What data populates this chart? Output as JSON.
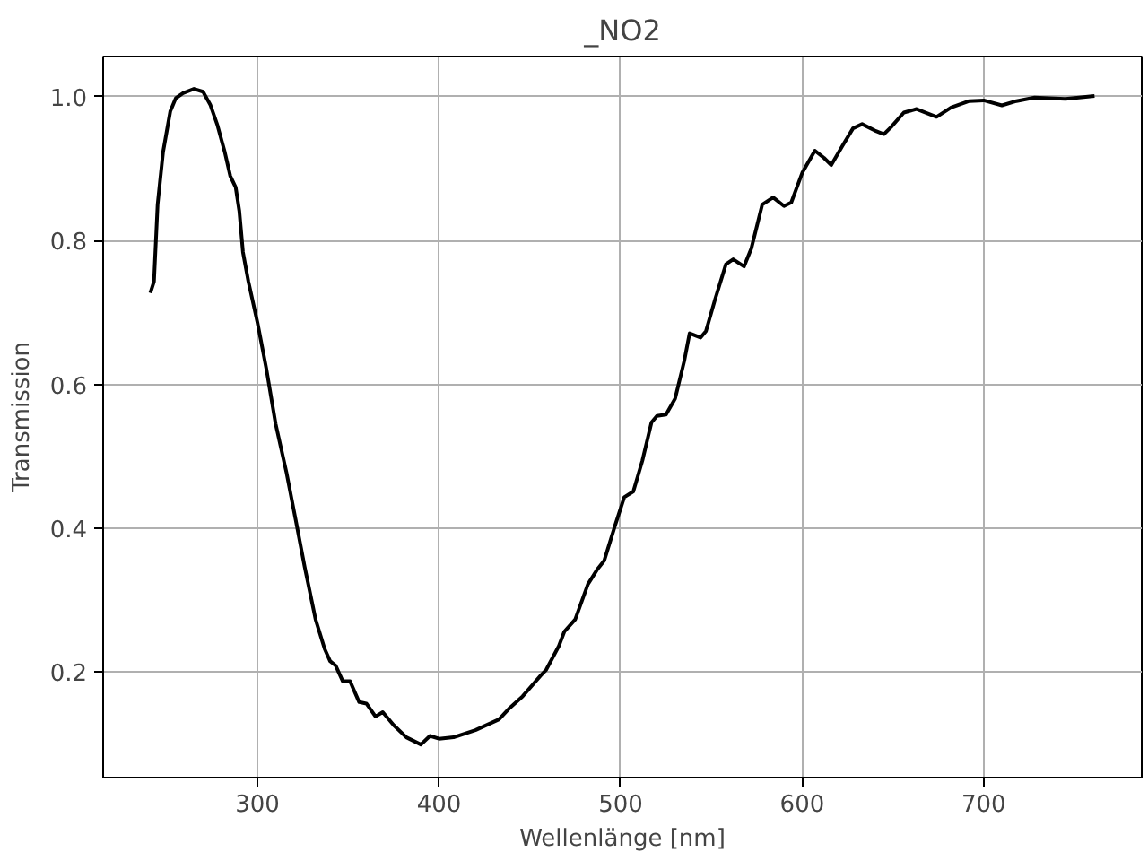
{
  "chart_data": {
    "type": "line",
    "title": "_NO2",
    "xlabel": "Wellenlänge [nm]",
    "ylabel": "Transmission",
    "x": [
      241,
      243,
      245,
      248,
      252,
      255,
      259,
      265,
      270,
      274,
      278,
      282,
      285,
      288,
      290,
      292,
      295,
      300,
      305,
      310,
      316,
      321,
      326,
      332,
      337,
      340,
      343,
      347,
      351,
      356,
      360,
      365,
      369,
      375,
      382,
      390,
      395,
      400,
      408,
      420,
      433,
      439,
      446,
      456,
      459,
      466,
      469,
      475,
      482,
      487,
      491,
      497,
      502,
      507,
      512,
      517,
      520,
      525,
      530,
      535,
      538,
      544,
      547,
      552,
      558,
      562,
      568,
      572,
      578,
      584,
      590,
      594,
      600,
      607,
      612,
      616,
      622,
      628,
      633,
      640,
      645,
      649,
      656,
      663,
      668,
      674,
      682,
      692,
      700,
      710,
      718,
      728,
      745,
      761
    ],
    "series": [
      {
        "color": "#000000",
        "values": [
          0.727,
          0.743,
          0.85,
          0.923,
          0.98,
          0.998,
          1.005,
          1.011,
          1.007,
          0.989,
          0.96,
          0.923,
          0.89,
          0.874,
          0.841,
          0.784,
          0.743,
          0.686,
          0.62,
          0.545,
          0.477,
          0.412,
          0.346,
          0.273,
          0.232,
          0.215,
          0.209,
          0.187,
          0.187,
          0.158,
          0.156,
          0.138,
          0.144,
          0.126,
          0.109,
          0.099,
          0.111,
          0.107,
          0.109,
          0.119,
          0.134,
          0.15,
          0.166,
          0.195,
          0.203,
          0.236,
          0.256,
          0.273,
          0.322,
          0.342,
          0.355,
          0.404,
          0.443,
          0.451,
          0.494,
          0.547,
          0.556,
          0.558,
          0.58,
          0.632,
          0.671,
          0.665,
          0.674,
          0.718,
          0.767,
          0.774,
          0.764,
          0.789,
          0.85,
          0.86,
          0.848,
          0.853,
          0.894,
          0.925,
          0.915,
          0.905,
          0.931,
          0.956,
          0.962,
          0.953,
          0.948,
          0.958,
          0.978,
          0.983,
          0.978,
          0.972,
          0.985,
          0.994,
          0.995,
          0.988,
          0.994,
          0.999,
          0.997,
          1.001
        ]
      }
    ],
    "xlim": [
      215,
      787
    ],
    "ylim": [
      0.053,
      1.056
    ],
    "xticks": [
      300,
      400,
      500,
      600,
      700
    ],
    "yticks": [
      0.2,
      0.4,
      0.6,
      0.8,
      {
        "value": 1,
        "label": "1.0"
      }
    ],
    "grid": true
  }
}
